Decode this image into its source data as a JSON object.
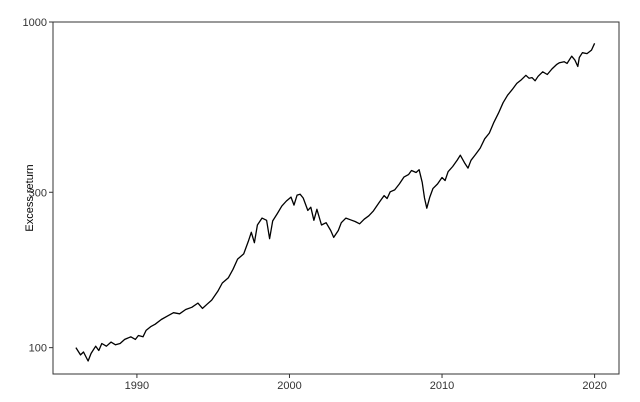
{
  "chart_data": {
    "type": "line",
    "title": "",
    "xlabel": "",
    "ylabel": "Excess return",
    "y_scale": "log",
    "xlim": [
      1984.5,
      2021.6
    ],
    "ylim": [
      83,
      1000
    ],
    "grid": false,
    "legend": "none",
    "x_ticks": [
      1990,
      2000,
      2010,
      2020
    ],
    "x_tick_labels": [
      "1990",
      "2000",
      "2010",
      "2020"
    ],
    "y_ticks": [
      100,
      300,
      1000
    ],
    "y_tick_labels": [
      "100",
      "300",
      "1000"
    ],
    "colors": {
      "line": "#000000",
      "frame": "#333333",
      "background": "#ffffff"
    },
    "series": [
      {
        "x": [
          1986.0,
          1986.3,
          1986.5,
          1986.8,
          1987.0,
          1987.3,
          1987.5,
          1987.7,
          1988.0,
          1988.3,
          1988.6,
          1988.9,
          1989.2,
          1989.6,
          1989.9,
          1990.1,
          1990.4,
          1990.6,
          1990.9,
          1991.2,
          1991.6,
          1992.0,
          1992.4,
          1992.8,
          1993.2,
          1993.6,
          1994.0,
          1994.3,
          1994.6,
          1994.9,
          1995.3,
          1995.6,
          1996.0,
          1996.3,
          1996.6,
          1997.0,
          1997.3,
          1997.5,
          1997.7,
          1997.9,
          1998.2,
          1998.5,
          1998.7,
          1998.9,
          1999.2,
          1999.5,
          1999.8,
          2000.1,
          2000.3,
          2000.5,
          2000.7,
          2000.9,
          2001.2,
          2001.4,
          2001.6,
          2001.8,
          2002.1,
          2002.4,
          2002.7,
          2002.9,
          2003.2,
          2003.4,
          2003.7,
          2004.0,
          2004.3,
          2004.6,
          2004.9,
          2005.2,
          2005.5,
          2005.9,
          2006.2,
          2006.4,
          2006.6,
          2006.9,
          2007.2,
          2007.5,
          2007.8,
          2008.0,
          2008.3,
          2008.5,
          2008.7,
          2008.85,
          2009.0,
          2009.2,
          2009.4,
          2009.7,
          2010.0,
          2010.2,
          2010.4,
          2010.7,
          2011.0,
          2011.2,
          2011.5,
          2011.7,
          2011.9,
          2012.2,
          2012.5,
          2012.8,
          2013.1,
          2013.4,
          2013.7,
          2014.0,
          2014.3,
          2014.6,
          2014.9,
          2015.2,
          2015.5,
          2015.7,
          2015.9,
          2016.1,
          2016.3,
          2016.6,
          2016.9,
          2017.2,
          2017.5,
          2017.7,
          2018.0,
          2018.2,
          2018.5,
          2018.7,
          2018.9,
          2019.0,
          2019.2,
          2019.5,
          2019.8,
          2020.0
        ],
        "y": [
          100,
          95,
          97,
          91,
          96,
          101,
          98,
          103,
          101,
          104,
          102,
          103,
          106,
          108,
          106,
          109,
          108,
          113,
          116,
          118,
          122,
          125,
          128,
          127,
          131,
          133,
          137,
          132,
          136,
          140,
          149,
          158,
          164,
          174,
          187,
          194,
          212,
          226,
          210,
          238,
          250,
          246,
          216,
          245,
          258,
          272,
          282,
          290,
          274,
          294,
          296,
          288,
          264,
          270,
          246,
          266,
          238,
          242,
          229,
          218,
          229,
          242,
          250,
          247,
          244,
          240,
          248,
          254,
          263,
          280,
          293,
          287,
          301,
          305,
          318,
          334,
          340,
          350,
          345,
          352,
          322,
          288,
          268,
          290,
          308,
          318,
          333,
          326,
          347,
          360,
          377,
          390,
          368,
          356,
          376,
          392,
          410,
          438,
          456,
          492,
          525,
          565,
          596,
          620,
          648,
          665,
          686,
          672,
          675,
          660,
          681,
          703,
          690,
          717,
          740,
          750,
          755,
          746,
          785,
          765,
          730,
          778,
          805,
          800,
          820,
          860
        ]
      }
    ]
  }
}
